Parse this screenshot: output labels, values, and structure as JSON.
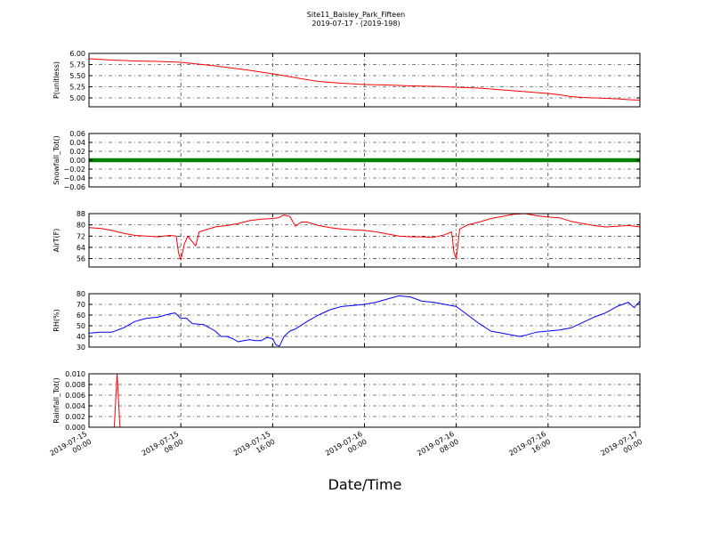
{
  "chart_data": {
    "type": "line",
    "title": "Site11_Baisley_Park_Fifteen",
    "subtitle": "2019-07-17 - (2019-198)",
    "xlabel": "Date/Time",
    "x_range_hours": [
      0,
      48
    ],
    "x_ticks": [
      {
        "hour": 0,
        "line1": "2019-07-15",
        "line2": "00:00"
      },
      {
        "hour": 8,
        "line1": "2019-07-15",
        "line2": "08:00"
      },
      {
        "hour": 16,
        "line1": "2019-07-15",
        "line2": "16:00"
      },
      {
        "hour": 24,
        "line1": "2019-07-16",
        "line2": "00:00"
      },
      {
        "hour": 32,
        "line1": "2019-07-16",
        "line2": "08:00"
      },
      {
        "hour": 40,
        "line1": "2019-07-16",
        "line2": "16:00"
      },
      {
        "hour": 48,
        "line1": "2019-07-17",
        "line2": "00:00"
      }
    ],
    "panels": [
      {
        "ylabel": "P(unitless)",
        "color": "#ff0000",
        "ylim": [
          4.8,
          6.0
        ],
        "yticks": [
          5.0,
          5.25,
          5.5,
          5.75,
          6.0
        ],
        "ytick_labels": [
          "5.00",
          "5.25",
          "5.50",
          "5.75",
          "6.00"
        ],
        "marker": false,
        "x": [
          0,
          2,
          4,
          6,
          8,
          9.5,
          11,
          12.5,
          14,
          15.5,
          17,
          18.5,
          20,
          22,
          24,
          26,
          28,
          30,
          32,
          34,
          36,
          38,
          40,
          41,
          42,
          43,
          44,
          45,
          46,
          47,
          48
        ],
        "y": [
          5.88,
          5.85,
          5.83,
          5.82,
          5.8,
          5.76,
          5.72,
          5.67,
          5.62,
          5.56,
          5.5,
          5.43,
          5.37,
          5.33,
          5.3,
          5.29,
          5.27,
          5.26,
          5.24,
          5.22,
          5.18,
          5.14,
          5.1,
          5.07,
          5.03,
          5.01,
          5.0,
          4.99,
          4.98,
          4.96,
          4.95
        ]
      },
      {
        "ylabel": "Snowfall_Tot()",
        "color": "#008000",
        "ylim": [
          -0.06,
          0.06
        ],
        "yticks": [
          -0.06,
          -0.04,
          -0.02,
          0.0,
          0.02,
          0.04,
          0.06
        ],
        "ytick_labels": [
          "−0.06",
          "−0.04",
          "−0.02",
          "0.00",
          "0.02",
          "0.04",
          "0.06"
        ],
        "marker": true,
        "x": [
          0,
          48
        ],
        "y": [
          0,
          0
        ]
      },
      {
        "ylabel": "AirT(F)",
        "color": "#ff0000",
        "ylim": [
          50,
          88
        ],
        "yticks": [
          56,
          64,
          72,
          80,
          88
        ],
        "ytick_labels": [
          "56",
          "64",
          "72",
          "80",
          "88"
        ],
        "marker": false,
        "x": [
          0,
          1,
          2,
          3,
          4,
          5,
          6,
          7,
          7.6,
          7.8,
          8.0,
          8.3,
          8.6,
          9,
          9.3,
          9.6,
          10,
          11,
          12,
          13,
          14,
          15,
          16,
          16.5,
          17,
          17.5,
          18,
          18.5,
          19,
          20,
          21,
          22,
          23,
          24,
          25,
          26,
          27,
          28,
          29,
          30,
          31,
          31.6,
          31.8,
          32.0,
          32.3,
          33,
          34,
          35,
          36,
          37,
          38,
          39,
          40,
          41,
          42,
          43,
          44,
          45,
          46,
          47,
          48
        ],
        "y": [
          78,
          77.5,
          76,
          74,
          72.5,
          72,
          71.5,
          72.5,
          72,
          60,
          55,
          66,
          72,
          68,
          65,
          75,
          76,
          78.5,
          79.5,
          81,
          83,
          84,
          84.5,
          85,
          87,
          86,
          79,
          82,
          82,
          79.5,
          78,
          77,
          76.5,
          76,
          75,
          73.5,
          72,
          71.5,
          71.5,
          71,
          73,
          75,
          60,
          56,
          77,
          80,
          82,
          84.5,
          86,
          87.5,
          88,
          86.5,
          85.5,
          85,
          82.5,
          81,
          79.5,
          78.5,
          79,
          79.5,
          78.5
        ]
      },
      {
        "ylabel": "RH(%)",
        "color": "#0000ff",
        "ylim": [
          30,
          80
        ],
        "yticks": [
          30,
          40,
          50,
          60,
          70,
          80
        ],
        "ytick_labels": [
          "30",
          "40",
          "50",
          "60",
          "70",
          "80"
        ],
        "marker": false,
        "x": [
          0,
          1,
          2,
          3,
          4,
          5,
          6,
          7,
          7.5,
          8,
          8.5,
          9,
          10,
          11,
          11.5,
          12,
          12.5,
          13,
          13.5,
          14,
          14.5,
          15,
          15.5,
          16,
          16.3,
          16.6,
          17,
          17.5,
          18,
          19,
          20,
          21,
          22,
          23,
          24,
          25,
          26,
          27,
          28,
          29,
          30,
          31,
          32,
          33,
          34,
          35,
          36,
          36.5,
          37,
          37.5,
          38,
          39,
          40,
          41,
          42,
          43,
          44,
          45,
          46,
          47,
          47.5,
          48
        ],
        "y": [
          43,
          44,
          44,
          48,
          54,
          57,
          58,
          61,
          62,
          57,
          57,
          52,
          51,
          45,
          40,
          40,
          38,
          35,
          36,
          37,
          36,
          36,
          39,
          38,
          32,
          31,
          40,
          45,
          47,
          54,
          60,
          65,
          68,
          69,
          70,
          72,
          75,
          78,
          77,
          73,
          72,
          70,
          68,
          60,
          52,
          45,
          43,
          42,
          41,
          40,
          41,
          44,
          45,
          46,
          48,
          53,
          58,
          62,
          68,
          72,
          67,
          73
        ]
      },
      {
        "ylabel": "Rainfall_Tot()",
        "color": "#ff0000",
        "ylim": [
          0,
          0.01
        ],
        "yticks": [
          0.0,
          0.002,
          0.004,
          0.006,
          0.008,
          0.01
        ],
        "ytick_labels": [
          "0.000",
          "0.002",
          "0.004",
          "0.006",
          "0.008",
          "0.010"
        ],
        "marker": false,
        "x": [
          0,
          2.2,
          2.45,
          2.7,
          48
        ],
        "y": [
          0,
          0,
          0.01,
          0,
          0
        ]
      }
    ]
  }
}
